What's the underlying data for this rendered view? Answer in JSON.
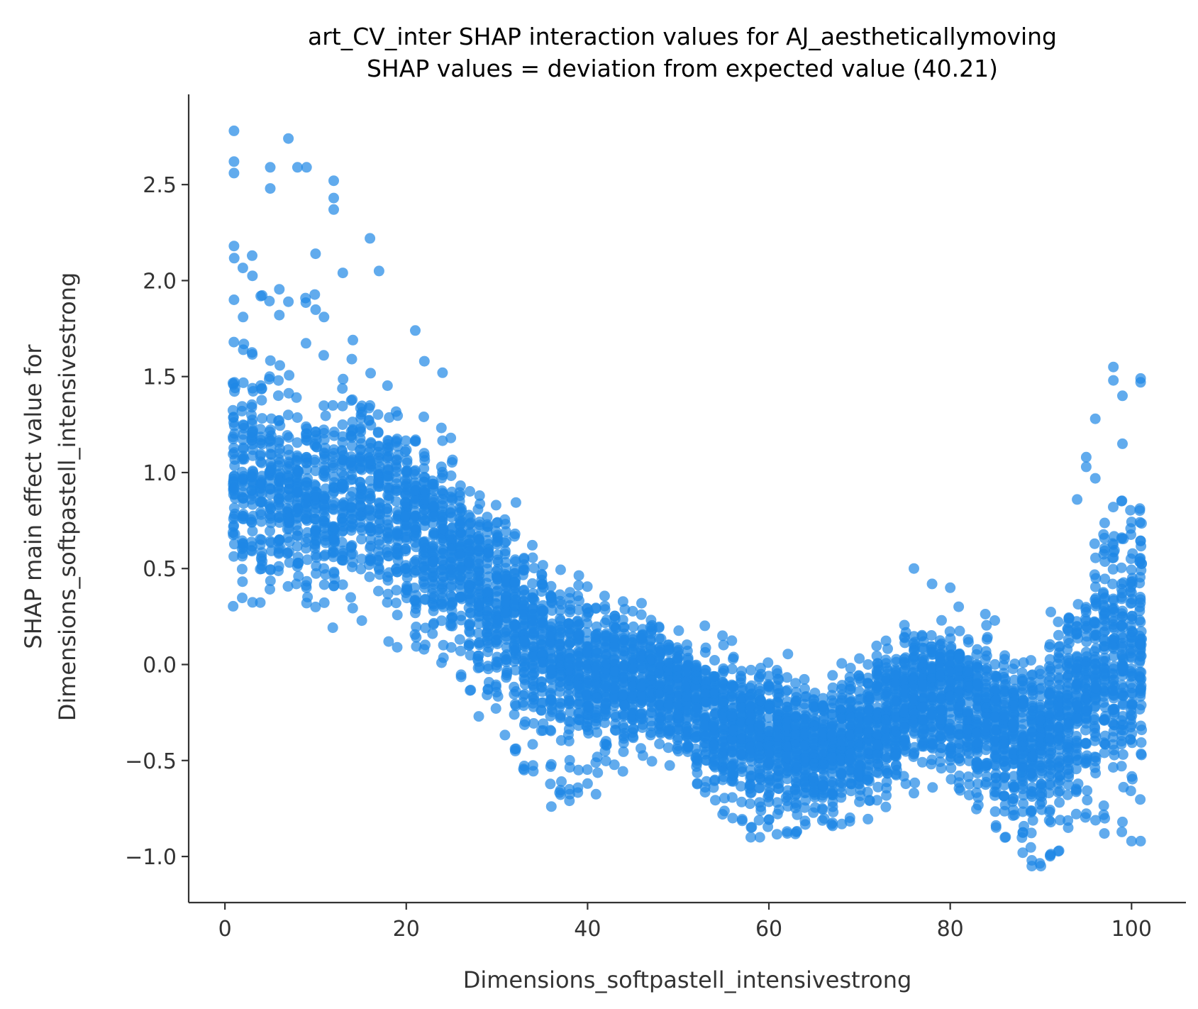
{
  "chart_data": {
    "type": "scatter",
    "title": "art_CV_inter SHAP interaction values for AJ_aestheticallymoving",
    "subtitle": "SHAP values = deviation from expected value (40.21)",
    "xlabel": "Dimensions_softpastell_intensivestrong",
    "ylabel_line1": "SHAP main effect value for",
    "ylabel_line2": "Dimensions_softpastell_intensivestrong",
    "xlim": [
      -4,
      106
    ],
    "ylim": [
      -1.24,
      2.97
    ],
    "x_ticks": [
      0,
      20,
      40,
      60,
      80,
      100
    ],
    "x_tick_labels": [
      "0",
      "20",
      "40",
      "60",
      "80",
      "100"
    ],
    "y_ticks": [
      -1.0,
      -0.5,
      0.0,
      0.5,
      1.0,
      1.5,
      2.0,
      2.5
    ],
    "y_tick_labels": [
      "−1.0",
      "−0.5",
      "0.0",
      "0.5",
      "1.0",
      "1.5",
      "2.0",
      "2.5"
    ],
    "grid": false,
    "legend": "none",
    "marker_color": "#1E88E5",
    "marker_opacity": 0.7,
    "trend": [
      {
        "x": 1,
        "y_center": 0.95,
        "y_min": 0.25,
        "y_max": 2.78
      },
      {
        "x": 5,
        "y_center": 0.9,
        "y_min": 0.22,
        "y_max": 2.6
      },
      {
        "x": 10,
        "y_center": 0.85,
        "y_min": 0.22,
        "y_max": 2.6
      },
      {
        "x": 15,
        "y_center": 0.9,
        "y_min": 0.15,
        "y_max": 2.22
      },
      {
        "x": 20,
        "y_center": 0.75,
        "y_min": 0.1,
        "y_max": 1.75
      },
      {
        "x": 25,
        "y_center": 0.6,
        "y_min": -0.05,
        "y_max": 1.3
      },
      {
        "x": 30,
        "y_center": 0.35,
        "y_min": -0.3,
        "y_max": 1.0
      },
      {
        "x": 35,
        "y_center": 0.1,
        "y_min": -0.72,
        "y_max": 0.75
      },
      {
        "x": 40,
        "y_center": -0.02,
        "y_min": -0.72,
        "y_max": 0.5
      },
      {
        "x": 45,
        "y_center": -0.05,
        "y_min": -0.55,
        "y_max": 0.4
      },
      {
        "x": 50,
        "y_center": -0.15,
        "y_min": -0.52,
        "y_max": 0.28
      },
      {
        "x": 55,
        "y_center": -0.3,
        "y_min": -0.8,
        "y_max": 0.15
      },
      {
        "x": 60,
        "y_center": -0.35,
        "y_min": -0.9,
        "y_max": 0.1
      },
      {
        "x": 65,
        "y_center": -0.45,
        "y_min": -0.88,
        "y_max": 0.0
      },
      {
        "x": 70,
        "y_center": -0.35,
        "y_min": -0.85,
        "y_max": 0.1
      },
      {
        "x": 75,
        "y_center": -0.2,
        "y_min": -0.67,
        "y_max": 0.5
      },
      {
        "x": 80,
        "y_center": -0.15,
        "y_min": -0.62,
        "y_max": 0.4
      },
      {
        "x": 85,
        "y_center": -0.3,
        "y_min": -0.88,
        "y_max": 0.3
      },
      {
        "x": 90,
        "y_center": -0.4,
        "y_min": -1.05,
        "y_max": 0.1
      },
      {
        "x": 95,
        "y_center": -0.1,
        "y_min": -0.88,
        "y_max": 1.28
      },
      {
        "x": 98,
        "y_center": 0.1,
        "y_min": -0.88,
        "y_max": 1.55
      },
      {
        "x": 101,
        "y_center": 0.1,
        "y_min": -0.92,
        "y_max": 1.48
      }
    ],
    "notable_points": [
      {
        "x": 1,
        "y": 2.78
      },
      {
        "x": 1,
        "y": 2.62
      },
      {
        "x": 1,
        "y": 2.56
      },
      {
        "x": 7,
        "y": 2.74
      },
      {
        "x": 5,
        "y": 2.59
      },
      {
        "x": 8,
        "y": 2.59
      },
      {
        "x": 9,
        "y": 2.59
      },
      {
        "x": 5,
        "y": 2.48
      },
      {
        "x": 12,
        "y": 2.52
      },
      {
        "x": 12,
        "y": 2.43
      },
      {
        "x": 12,
        "y": 2.37
      },
      {
        "x": 16,
        "y": 2.22
      },
      {
        "x": 1,
        "y": 2.18
      },
      {
        "x": 3,
        "y": 2.13
      },
      {
        "x": 10,
        "y": 2.14
      },
      {
        "x": 17,
        "y": 2.05
      },
      {
        "x": 13,
        "y": 2.04
      },
      {
        "x": 1,
        "y": 1.9
      },
      {
        "x": 2,
        "y": 1.81
      },
      {
        "x": 6,
        "y": 1.82
      },
      {
        "x": 7,
        "y": 1.89
      },
      {
        "x": 21,
        "y": 1.74
      },
      {
        "x": 22,
        "y": 1.58
      },
      {
        "x": 24,
        "y": 1.52
      },
      {
        "x": 98,
        "y": 1.55
      },
      {
        "x": 98,
        "y": 1.48
      },
      {
        "x": 101,
        "y": 1.49
      },
      {
        "x": 101,
        "y": 1.47
      },
      {
        "x": 99,
        "y": 1.4
      },
      {
        "x": 96,
        "y": 1.28
      },
      {
        "x": 99,
        "y": 1.15
      },
      {
        "x": 95,
        "y": 1.08
      },
      {
        "x": 95,
        "y": 1.03
      },
      {
        "x": 96,
        "y": 0.97
      },
      {
        "x": 94,
        "y": 0.86
      },
      {
        "x": 10,
        "y": 0.3
      },
      {
        "x": 9,
        "y": 0.32
      },
      {
        "x": 19,
        "y": 0.09
      },
      {
        "x": 28,
        "y": -0.27
      },
      {
        "x": 32,
        "y": -0.44
      },
      {
        "x": 33,
        "y": -0.55
      },
      {
        "x": 36,
        "y": -0.52
      },
      {
        "x": 36,
        "y": -0.74
      },
      {
        "x": 38,
        "y": -0.65
      },
      {
        "x": 38,
        "y": -0.71
      },
      {
        "x": 40,
        "y": -0.62
      },
      {
        "x": 39,
        "y": -0.55
      },
      {
        "x": 56,
        "y": -0.8
      },
      {
        "x": 58,
        "y": -0.9
      },
      {
        "x": 59,
        "y": -0.9
      },
      {
        "x": 62,
        "y": -0.87
      },
      {
        "x": 76,
        "y": -0.67
      },
      {
        "x": 88,
        "y": -0.98
      },
      {
        "x": 89,
        "y": -1.05
      },
      {
        "x": 90,
        "y": -1.05
      },
      {
        "x": 89,
        "y": -1.02
      },
      {
        "x": 92,
        "y": -0.97
      },
      {
        "x": 97,
        "y": -0.88
      },
      {
        "x": 99,
        "y": -0.82
      },
      {
        "x": 100,
        "y": -0.92
      },
      {
        "x": 101,
        "y": -0.92
      },
      {
        "x": 76,
        "y": 0.5
      },
      {
        "x": 78,
        "y": 0.42
      },
      {
        "x": 80,
        "y": 0.4
      },
      {
        "x": 81,
        "y": -0.58
      }
    ]
  }
}
